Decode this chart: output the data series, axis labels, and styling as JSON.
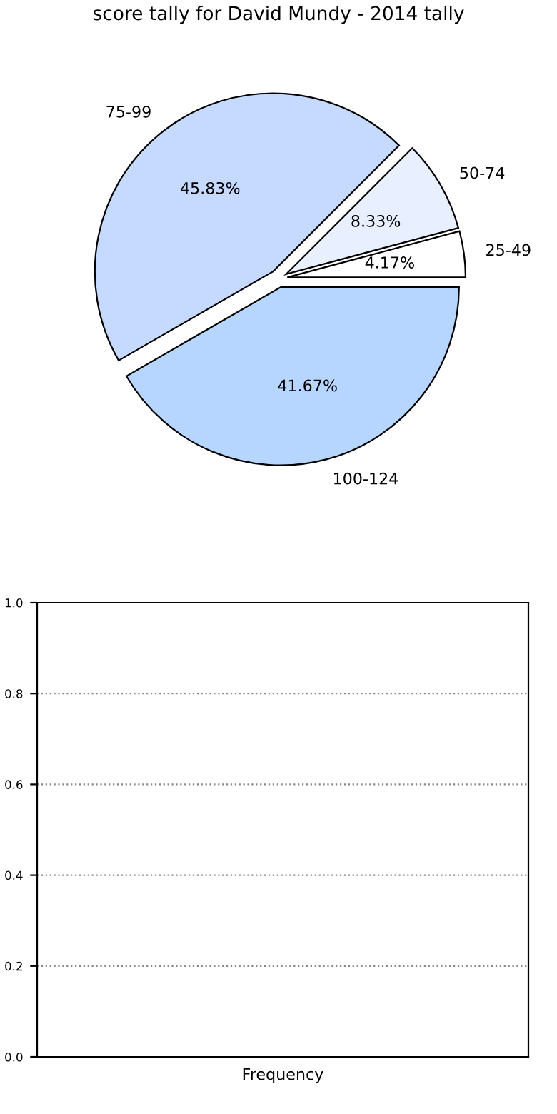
{
  "chart_data": [
    {
      "type": "pie",
      "title": "score tally for David Mundy - 2014 tally",
      "categories": [
        "25-49",
        "50-74",
        "75-99",
        "100-124"
      ],
      "values": [
        4.17,
        8.33,
        45.83,
        41.67
      ],
      "colors": [
        "#ffffff",
        "#e8efff",
        "#c6d9ff",
        "#b6d6ff"
      ],
      "value_labels": [
        "4.17%",
        "8.33%",
        "45.83%",
        "41.67%"
      ]
    },
    {
      "type": "bar",
      "categories": [
        null
      ],
      "values": [
        null
      ],
      "xlabel": "Frequency",
      "ylim": [
        0,
        1.0
      ],
      "yticks": [
        {
          "value": 0,
          "label": "0.0"
        },
        0.2,
        0.4,
        0.6,
        0.8,
        {
          "value": 1,
          "label": "1.0"
        }
      ],
      "grid": "y"
    }
  ]
}
